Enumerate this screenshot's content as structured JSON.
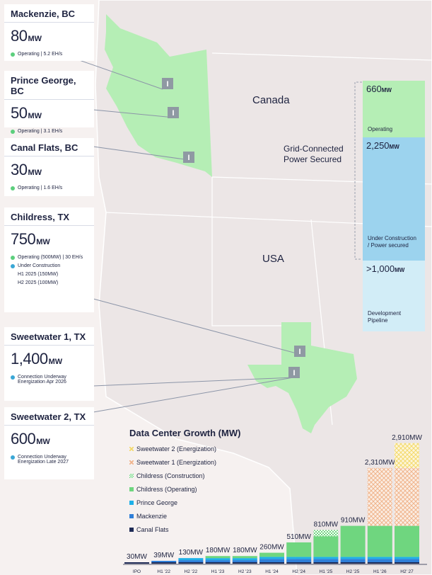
{
  "map": {
    "canada_label": "Canada",
    "usa_label": "USA",
    "grid_label_line1": "Grid-Connected",
    "grid_label_line2": "Power Secured"
  },
  "sites": [
    {
      "name": "Mackenzie, BC",
      "capacity": "80",
      "unit": "MW",
      "lines": [
        {
          "dot": "#5ccf7d",
          "text": "Operating | 5.2 EH/s"
        }
      ],
      "sub": []
    },
    {
      "name": "Prince George, BC",
      "capacity": "50",
      "unit": "MW",
      "lines": [
        {
          "dot": "#5ccf7d",
          "text": "Operating | 3.1 EH/s"
        }
      ],
      "sub": []
    },
    {
      "name": "Canal Flats, BC",
      "capacity": "30",
      "unit": "MW",
      "lines": [
        {
          "dot": "#5ccf7d",
          "text": "Operating | 1.6 EH/s"
        }
      ],
      "sub": []
    },
    {
      "name": "Childress, TX",
      "capacity": "750",
      "unit": "MW",
      "lines": [
        {
          "dot": "#5ccf7d",
          "text": "Operating (500MW) | 30 EH/s"
        },
        {
          "dot": "#3aa7d6",
          "text": "Under Construction"
        }
      ],
      "sub": [
        "H1 2025 (150MW)",
        "H2 2025 (100MW)"
      ]
    },
    {
      "name": "Sweetwater 1, TX",
      "capacity": "1,400",
      "unit": "MW",
      "lines": [
        {
          "dot": "#3aa7d6",
          "text": "Connection Underway Energization Apr 2026"
        }
      ],
      "sub": []
    },
    {
      "name": "Sweetwater 2, TX",
      "capacity": "600",
      "unit": "MW",
      "lines": [
        {
          "dot": "#3aa7d6",
          "text": "Connection Underway Energization Late 2027"
        }
      ],
      "sub": []
    }
  ],
  "power_bar": [
    {
      "value": "660",
      "unit": "MW",
      "label": "Operating",
      "color": "#b5eeb5"
    },
    {
      "value": "2,250",
      "unit": "MW",
      "label": "Under Construction / Power secured",
      "color": "#9cd3ee"
    },
    {
      "value": ">1,000",
      "unit": "MW",
      "label": "Development Pipeline",
      "color": "#d2edf7"
    }
  ],
  "chart_data": {
    "type": "bar",
    "title": "Data Center Growth (MW)",
    "categories": [
      "IPO",
      "H1 '22",
      "H2 '22",
      "H1 '23",
      "H2 '23",
      "H1 '24",
      "H2 '24",
      "H1 '25",
      "H2 '25",
      "H1 '26",
      "H2' 27"
    ],
    "totals": [
      "30MW",
      "39MW",
      "130MW",
      "180MW",
      "180MW",
      "260MW",
      "510MW",
      "810MW",
      "910MW",
      "2,310MW",
      "2,910MW"
    ],
    "total_values": [
      30,
      39,
      130,
      180,
      180,
      260,
      510,
      810,
      910,
      2310,
      2910
    ],
    "unit": "MW",
    "series": [
      {
        "name": "Canal Flats",
        "color": "#1e2a55",
        "pattern": "solid",
        "values": [
          30,
          30,
          30,
          30,
          30,
          30,
          30,
          30,
          30,
          30,
          30
        ]
      },
      {
        "name": "Mackenzie",
        "color": "#2f7fd8",
        "pattern": "solid",
        "values": [
          0,
          9,
          50,
          50,
          50,
          80,
          80,
          80,
          80,
          80,
          80
        ]
      },
      {
        "name": "Prince George",
        "color": "#1eb0e8",
        "pattern": "solid",
        "values": [
          0,
          0,
          50,
          50,
          50,
          50,
          50,
          50,
          50,
          50,
          50
        ]
      },
      {
        "name": "Childress (Operating)",
        "color": "#6fd67f",
        "pattern": "solid",
        "values": [
          0,
          0,
          0,
          50,
          50,
          100,
          350,
          500,
          750,
          750,
          750
        ]
      },
      {
        "name": "Childress (Construction)",
        "color": "#6fd67f",
        "pattern": "checker",
        "values": [
          0,
          0,
          0,
          0,
          0,
          0,
          0,
          150,
          0,
          0,
          0
        ]
      },
      {
        "name": "Sweetwater 1 (Energization)",
        "color": "#f0b48c",
        "pattern": "cross",
        "values": [
          0,
          0,
          0,
          0,
          0,
          0,
          0,
          0,
          0,
          1400,
          1400
        ]
      },
      {
        "name": "Sweetwater 2 (Energization)",
        "color": "#f3d96b",
        "pattern": "cross",
        "values": [
          0,
          0,
          0,
          0,
          0,
          0,
          0,
          0,
          0,
          0,
          600
        ]
      }
    ],
    "legend": "top-left"
  }
}
